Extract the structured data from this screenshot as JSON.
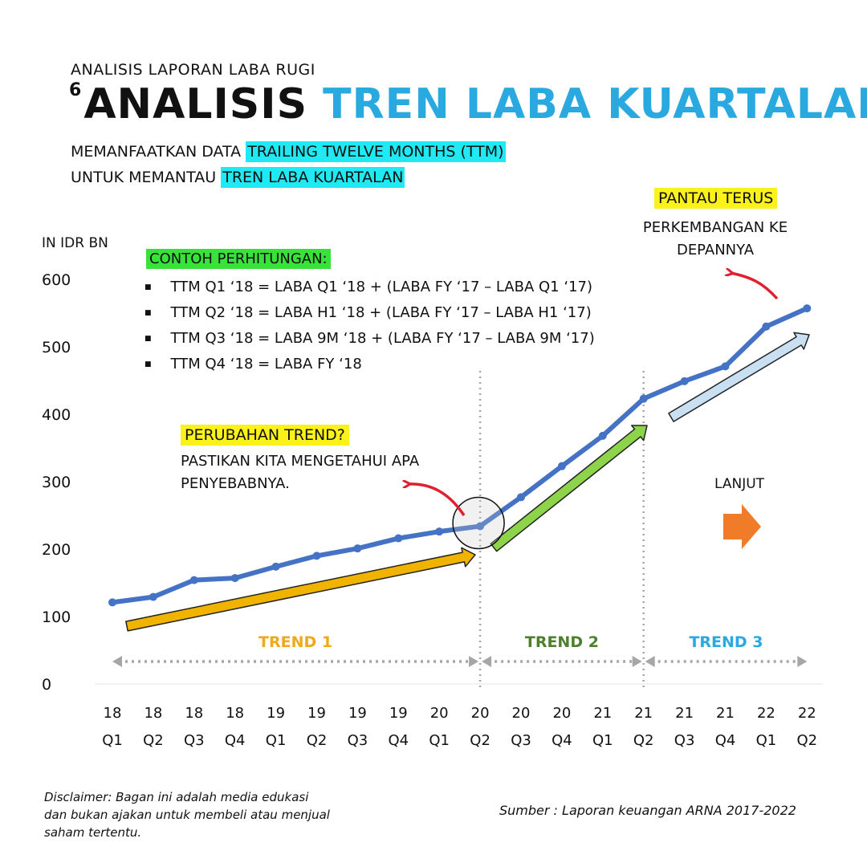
{
  "header": {
    "kicker": "ANALISIS LAPORAN LABA RUGI",
    "number": "6",
    "title_main": "ANALISIS",
    "title_accent": "TREN LABA KUARTALAN",
    "subtitle_line1_prefix": "MEMANFAATKAN DATA ",
    "subtitle_line1_highlight": "TRAILING TWELVE MONTHS (TTM)",
    "subtitle_line2_prefix": "UNTUK MEMANTAU ",
    "subtitle_line2_highlight": "TREN LABA KUARTALAN"
  },
  "unit_label": "IN IDR BN",
  "calculation": {
    "title": "CONTOH PERHITUNGAN:",
    "items": [
      "TTM Q1 ‘18 = LABA Q1 ‘18 + (LABA FY ‘17 – LABA Q1 ‘17)",
      "TTM Q2 ‘18 = LABA H1 ‘18 + (LABA FY ‘17 – LABA H1 ‘17)",
      "TTM Q3 ‘18 = LABA 9M ‘18 + (LABA FY ‘17 – LABA 9M ‘17)",
      "TTM Q4 ‘18 = LABA FY ‘18"
    ]
  },
  "annotations": {
    "pantau_title": "PANTAU TERUS",
    "pantau_text": "PERKEMBANGAN KE DEPANNYA",
    "perubahan_title": "PERUBAHAN TREND?",
    "perubahan_text": "PASTIKAN KITA MENGETAHUI APA PENYEBABNYA.",
    "lanjut": "LANJUT"
  },
  "footer": {
    "disclaimer": "Disclaimer: Bagan ini adalah media edukasi dan bukan ajakan untuk membeli atau menjual saham tertentu.",
    "source": "Sumber : Laporan keuangan ARNA 2017-2022"
  },
  "colors": {
    "line": "#4472c4",
    "title_accent": "#29a9e0",
    "trend1": "#f0b400",
    "trend2": "#8dd44b",
    "trend3": "#c9dff2",
    "trend1_label": "#f0a91e",
    "trend2_label": "#4e7f2d",
    "trend3_label": "#29a9e0",
    "red_arrow": "#e0202e",
    "orange_arrow": "#f07c2a"
  },
  "chart_data": {
    "type": "line",
    "x_years": [
      "18",
      "18",
      "18",
      "18",
      "19",
      "19",
      "19",
      "19",
      "20",
      "20",
      "20",
      "20",
      "21",
      "21",
      "21",
      "21",
      "22",
      "22"
    ],
    "x_quarters": [
      "Q1",
      "Q2",
      "Q3",
      "Q4",
      "Q1",
      "Q2",
      "Q3",
      "Q4",
      "Q1",
      "Q2",
      "Q3",
      "Q4",
      "Q1",
      "Q2",
      "Q3",
      "Q4",
      "Q1",
      "Q2"
    ],
    "values": [
      121,
      129,
      154,
      157,
      174,
      190,
      201,
      216,
      226,
      234,
      277,
      323,
      368,
      423,
      449,
      471,
      530,
      557
    ],
    "yticks": [
      0,
      100,
      200,
      300,
      400,
      500,
      600
    ],
    "ylim": [
      0,
      600
    ],
    "trends": [
      {
        "label": "TREND 1",
        "start_index": 0,
        "end_index": 9
      },
      {
        "label": "TREND 2",
        "start_index": 9,
        "end_index": 13
      },
      {
        "label": "TREND 3",
        "start_index": 13,
        "end_index": 17
      }
    ],
    "highlight_index": 9,
    "grid": false
  }
}
